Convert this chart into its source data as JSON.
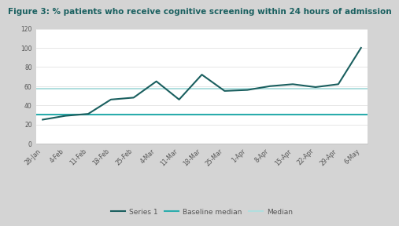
{
  "title": "Figure 3: % patients who receive cognitive screening within 24 hours of admission",
  "x_labels": [
    "28-Jan",
    "4-Feb",
    "11-Feb",
    "18-Feb",
    "25-Feb",
    "4-Mar",
    "11-Mar",
    "18-Mar",
    "25-Mar",
    "1-Apr",
    "8-Apr",
    "15-Apr",
    "22-Apr",
    "29-Apr",
    "6-May"
  ],
  "series1": [
    25,
    29,
    31,
    46,
    48,
    65,
    46,
    72,
    55,
    56,
    60,
    62,
    59,
    62,
    100
  ],
  "baseline_median": 30,
  "median": 57,
  "series1_color": "#1a5f5f",
  "baseline_color": "#2aacac",
  "median_color": "#b0dede",
  "bg_color": "#d4d4d4",
  "plot_bg_color": "#ffffff",
  "title_color": "#1a6060",
  "title_fontsize": 7.5,
  "tick_fontsize": 5.5,
  "legend_fontsize": 6.5,
  "ylim": [
    0,
    120
  ],
  "yticks": [
    0,
    20,
    40,
    60,
    80,
    100,
    120
  ]
}
